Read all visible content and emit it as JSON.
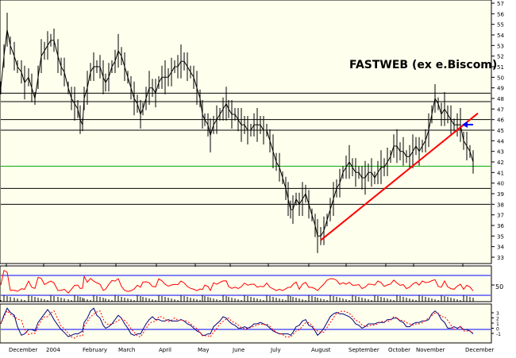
{
  "chart_data": {
    "type": "line",
    "title": "FASTWEB (ex e.Biscom)",
    "y_ticks": [
      33,
      34,
      35,
      36,
      37,
      38,
      39,
      40,
      41,
      42,
      43,
      44,
      45,
      46,
      47,
      48,
      49,
      50,
      51,
      52,
      53,
      54,
      55,
      56,
      57
    ],
    "ylim": [
      32.4,
      57.3
    ],
    "x_month_labels": [
      "December",
      "2004",
      "February",
      "March",
      "April",
      "May",
      "June",
      "July",
      "August",
      "September",
      "October",
      "November",
      "December"
    ],
    "price_series": {
      "name": "",
      "points": [
        [
          1,
          49
        ],
        [
          5,
          52
        ],
        [
          9,
          54.5
        ],
        [
          13,
          53
        ],
        [
          18,
          52
        ],
        [
          22,
          51
        ],
        [
          27,
          50.5
        ],
        [
          31,
          49.5
        ],
        [
          36,
          50
        ],
        [
          40,
          49
        ],
        [
          44,
          48
        ],
        [
          48,
          50
        ],
        [
          52,
          52
        ],
        [
          56,
          52.5
        ],
        [
          60,
          53
        ],
        [
          64,
          53.5
        ],
        [
          68,
          53.5
        ],
        [
          73,
          52
        ],
        [
          77,
          51
        ],
        [
          81,
          50.5
        ],
        [
          86,
          49
        ],
        [
          90,
          48
        ],
        [
          94,
          47.5
        ],
        [
          98,
          47
        ],
        [
          101,
          46
        ],
        [
          104,
          45.5
        ],
        [
          106,
          48
        ],
        [
          110,
          49
        ],
        [
          114,
          50.5
        ],
        [
          118,
          51
        ],
        [
          122,
          51
        ],
        [
          126,
          51
        ],
        [
          130,
          50
        ],
        [
          133,
          49.5
        ],
        [
          137,
          50
        ],
        [
          141,
          51
        ],
        [
          145,
          51.5
        ],
        [
          149,
          52.5
        ],
        [
          153,
          52
        ],
        [
          157,
          51
        ],
        [
          161,
          50
        ],
        [
          165,
          49
        ],
        [
          169,
          48
        ],
        [
          173,
          47.5
        ],
        [
          177,
          46.5
        ],
        [
          180,
          47
        ],
        [
          184,
          48
        ],
        [
          188,
          49
        ],
        [
          192,
          49
        ],
        [
          196,
          48.5
        ],
        [
          200,
          49.5
        ],
        [
          204,
          50
        ],
        [
          208,
          50
        ],
        [
          212,
          50
        ],
        [
          216,
          50.5
        ],
        [
          220,
          51
        ],
        [
          224,
          51
        ],
        [
          228,
          51.5
        ],
        [
          232,
          51.5
        ],
        [
          236,
          51
        ],
        [
          240,
          50.5
        ],
        [
          244,
          50
        ],
        [
          248,
          49
        ],
        [
          252,
          48
        ],
        [
          255,
          46.5
        ],
        [
          258,
          46
        ],
        [
          262,
          45.5
        ],
        [
          265,
          44.5
        ],
        [
          269,
          45.5
        ],
        [
          273,
          46
        ],
        [
          277,
          46.5
        ],
        [
          281,
          47
        ],
        [
          285,
          47.5
        ],
        [
          288,
          47
        ],
        [
          292,
          46.5
        ],
        [
          296,
          46.5
        ],
        [
          300,
          46
        ],
        [
          304,
          45.5
        ],
        [
          308,
          45.5
        ],
        [
          312,
          45
        ],
        [
          316,
          45
        ],
        [
          320,
          45.5
        ],
        [
          324,
          45.5
        ],
        [
          328,
          45.5
        ],
        [
          332,
          45
        ],
        [
          336,
          45
        ],
        [
          340,
          44
        ],
        [
          344,
          43
        ],
        [
          348,
          42
        ],
        [
          352,
          41.5
        ],
        [
          356,
          40.5
        ],
        [
          360,
          39.5
        ],
        [
          363,
          38.5
        ],
        [
          366,
          37.5
        ],
        [
          369,
          37.5
        ],
        [
          373,
          38.5
        ],
        [
          377,
          38
        ],
        [
          381,
          38.5
        ],
        [
          385,
          39
        ],
        [
          389,
          38
        ],
        [
          393,
          37
        ],
        [
          397,
          36
        ],
        [
          400,
          35
        ],
        [
          404,
          35
        ],
        [
          408,
          35.5
        ],
        [
          412,
          36.5
        ],
        [
          416,
          37.5
        ],
        [
          420,
          38.5
        ],
        [
          424,
          39.5
        ],
        [
          428,
          40
        ],
        [
          432,
          41
        ],
        [
          436,
          41.5
        ],
        [
          440,
          42
        ],
        [
          444,
          41.5
        ],
        [
          448,
          41
        ],
        [
          452,
          41
        ],
        [
          456,
          40.5
        ],
        [
          460,
          40.5
        ],
        [
          464,
          41
        ],
        [
          468,
          41
        ],
        [
          472,
          40.5
        ],
        [
          476,
          41
        ],
        [
          480,
          41.5
        ],
        [
          484,
          41.5
        ],
        [
          488,
          42
        ],
        [
          492,
          42.5
        ],
        [
          496,
          43.5
        ],
        [
          500,
          43.5
        ],
        [
          504,
          43
        ],
        [
          508,
          43
        ],
        [
          512,
          42.5
        ],
        [
          516,
          42.5
        ],
        [
          520,
          43
        ],
        [
          524,
          43.5
        ],
        [
          528,
          43
        ],
        [
          532,
          43.5
        ],
        [
          536,
          44
        ],
        [
          540,
          45
        ],
        [
          544,
          46.5
        ],
        [
          548,
          48
        ],
        [
          552,
          47.5
        ],
        [
          556,
          46.5
        ],
        [
          560,
          47
        ],
        [
          564,
          46.5
        ],
        [
          568,
          46
        ],
        [
          572,
          45.5
        ],
        [
          576,
          45.5
        ],
        [
          580,
          45.5
        ],
        [
          584,
          44
        ],
        [
          588,
          43.5
        ],
        [
          592,
          43
        ],
        [
          596,
          42
        ]
      ]
    },
    "trend_line": {
      "from": [
        404,
        34.6
      ],
      "to": [
        602,
        46.6
      ]
    },
    "horizontal_levels": [
      {
        "value": 48.5,
        "color": "#000000"
      },
      {
        "value": 47.7,
        "color": "#000000"
      },
      {
        "value": 46.0,
        "color": "#000000"
      },
      {
        "value": 45.0,
        "color": "#000000"
      },
      {
        "value": 41.6,
        "color": "#00aa00"
      },
      {
        "value": 39.5,
        "color": "#000000"
      },
      {
        "value": 38.0,
        "color": "#000000"
      }
    ],
    "rsi_panel": {
      "label": "50"
    },
    "oscillator_panel": {
      "ticks": [
        "3",
        "2",
        "1",
        "0",
        "-1"
      ]
    },
    "colors": {
      "background": "#ffffee",
      "price": "#000000",
      "trend": "#ff0000",
      "rsi": "#ff0000",
      "oscillator": "#000080",
      "panel_bound": "#0000ff",
      "arrow": "#0000ff"
    }
  }
}
